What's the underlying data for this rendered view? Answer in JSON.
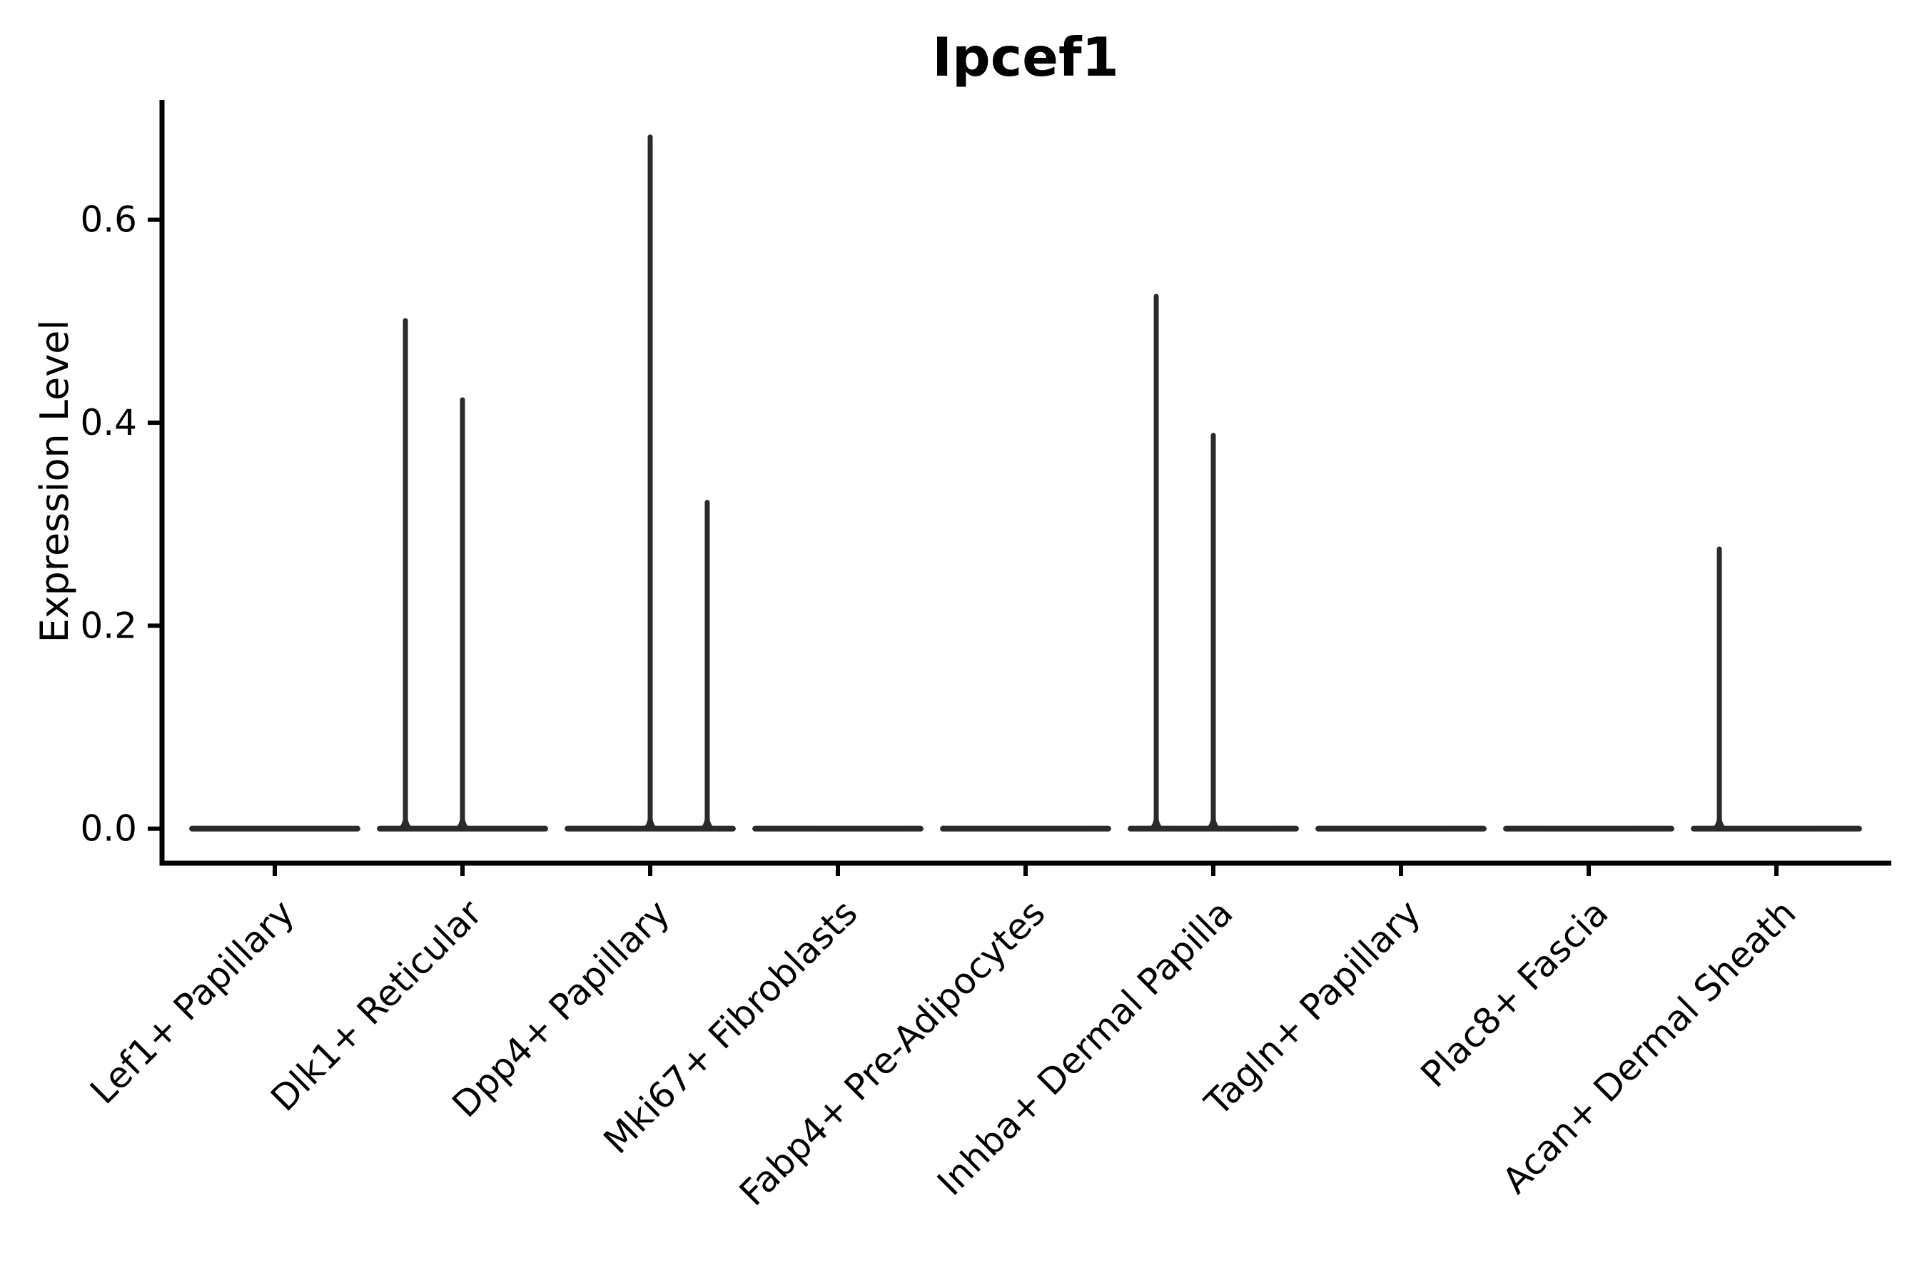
{
  "figure": {
    "title": "Ipcef1"
  },
  "chart_data": {
    "type": "violin",
    "title": "Ipcef1",
    "xlabel": "",
    "ylabel": "Expression Level",
    "categories": [
      "Lef1+ Papillary",
      "Dlk1+ Reticular",
      "Dpp4+ Papillary",
      "Mki67+ Fibroblasts",
      "Fabp4+ Pre-Adipocytes",
      "Inhba+ Dermal Papilla",
      "Tagln+ Papillary",
      "Plac8+ Fascia",
      "Acan+ Dermal Sheath"
    ],
    "ytick_values": [
      0.0,
      0.2,
      0.4,
      0.6
    ],
    "ytick_labels": [
      "0.0",
      "0.2",
      "0.4",
      "0.6"
    ],
    "ylim": [
      -0.034,
      0.718
    ],
    "grid": false,
    "legend": "none",
    "violin_base_halfwidth": 0.456,
    "violins": [
      {
        "category": "Lef1+ Papillary",
        "base": 0,
        "spikes": []
      },
      {
        "category": "Dlk1+ Reticular",
        "base": 0,
        "spikes": [
          {
            "offset": -0.304,
            "max": 0.503
          },
          {
            "offset": 0,
            "max": 0.425
          }
        ]
      },
      {
        "category": "Dpp4+ Papillary",
        "base": 0,
        "spikes": [
          {
            "offset": 0,
            "max": 0.684
          },
          {
            "offset": 0.304,
            "max": 0.324
          }
        ]
      },
      {
        "category": "Mki67+ Fibroblasts",
        "base": 0,
        "spikes": []
      },
      {
        "category": "Fabp4+ Pre-Adipocytes",
        "base": 0,
        "spikes": []
      },
      {
        "category": "Inhba+ Dermal Papilla",
        "base": 0,
        "spikes": [
          {
            "offset": -0.304,
            "max": 0.527
          },
          {
            "offset": 0,
            "max": 0.39
          }
        ]
      },
      {
        "category": "Tagln+ Papillary",
        "base": 0,
        "spikes": []
      },
      {
        "category": "Plac8+ Fascia",
        "base": 0,
        "spikes": []
      },
      {
        "category": "Acan+ Dermal Sheath",
        "base": 0,
        "spikes": [
          {
            "offset": -0.304,
            "max": 0.278
          }
        ]
      }
    ],
    "colors": {
      "violin_line": "#2a2a2a",
      "axis": "#000000",
      "text": "#000000",
      "background": "#ffffff"
    }
  }
}
